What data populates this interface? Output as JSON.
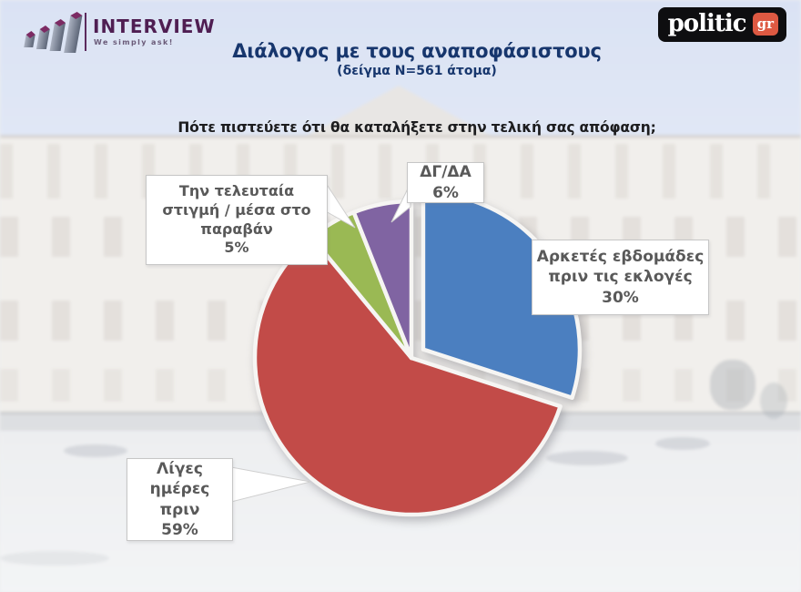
{
  "brand": {
    "interview": {
      "name": "INTERVIEW",
      "tagline": "We simply ask!"
    },
    "politic": {
      "name": "politic",
      "suffix": "gr"
    }
  },
  "header": {
    "title": "Διάλογος με τους αναποφάσιστους",
    "subtitle": "(δείγμα N=561 άτομα)"
  },
  "question": {
    "text": "Πότε πιστεύετε ότι θα καταλήξετε στην τελική σας απόφαση;"
  },
  "chart_data": {
    "type": "pie",
    "title": "Διάλογος με τους αναποφάσιστους",
    "sample": "N=561 άτομα",
    "start_angle_deg": 0,
    "direction": "clockwise",
    "categories": [
      "Αρκετές εβδομάδες πριν τις εκλογές",
      "Λίγες ημέρες πριν",
      "Την τελευταία στιγμή / μέσα στο παραβάν",
      "ΔΓ/ΔΑ"
    ],
    "values": [
      30,
      59,
      5,
      6
    ],
    "slices": [
      {
        "label": "Αρκετές εβδομάδες πριν τις εκλογές",
        "value": 30,
        "pct_label": "30%",
        "color": "#4b7fc0",
        "explode": true
      },
      {
        "label": "Λίγες ημέρες πριν",
        "value": 59,
        "pct_label": "59%",
        "color": "#c24b48",
        "explode": false
      },
      {
        "label": "Την τελευταία στιγμή / μέσα στο παραβάν",
        "value": 5,
        "pct_label": "5%",
        "color": "#9ab954",
        "explode": false
      },
      {
        "label": "ΔΓ/ΔΑ",
        "value": 6,
        "pct_label": "6%",
        "color": "#8064a2",
        "explode": false
      }
    ],
    "legend": "none",
    "labels_style": "white callout boxes with percentages"
  }
}
